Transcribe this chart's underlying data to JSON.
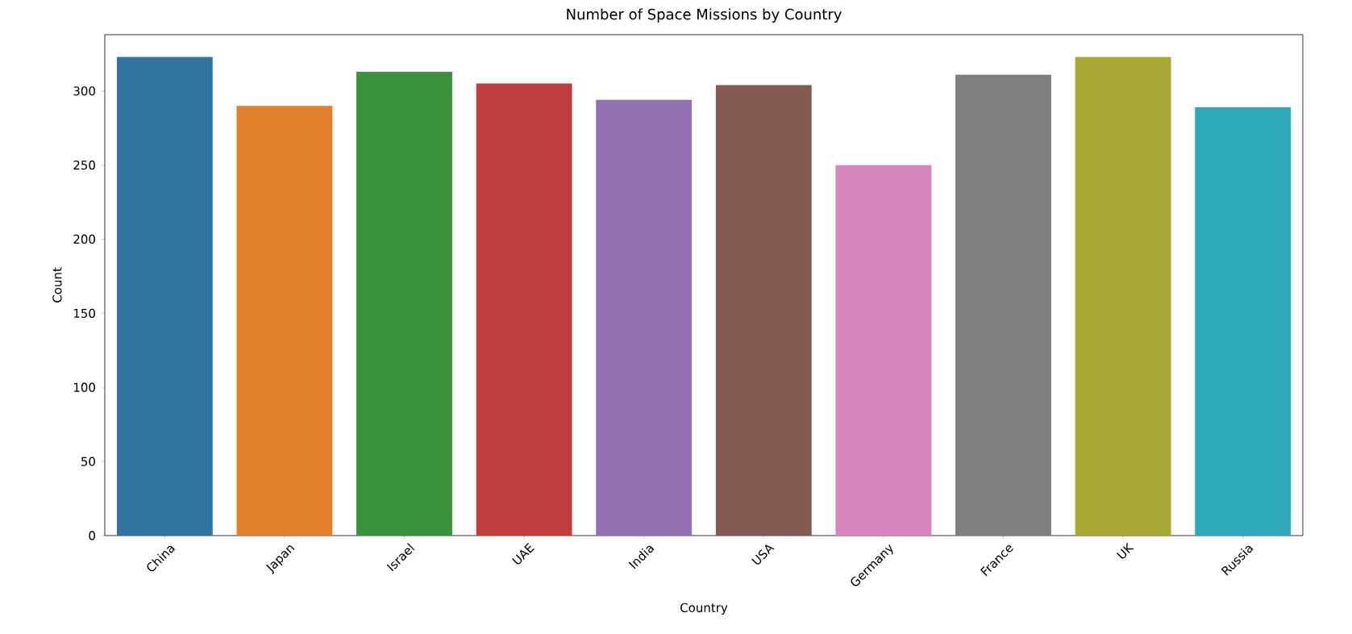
{
  "chart_data": {
    "type": "bar",
    "title": "Number of Space Missions by Country",
    "xlabel": "Country",
    "ylabel": "Count",
    "categories": [
      "China",
      "Japan",
      "Israel",
      "UAE",
      "India",
      "USA",
      "Germany",
      "France",
      "UK",
      "Russia"
    ],
    "values": [
      323,
      290,
      313,
      305,
      294,
      304,
      250,
      311,
      323,
      289
    ],
    "colors": [
      "#3274a1",
      "#e1812c",
      "#3a923a",
      "#c03d3e",
      "#9372b2",
      "#845b53",
      "#d684bd",
      "#7f7f7f",
      "#a9aa35",
      "#2ea9b8"
    ],
    "ylim": [
      0,
      338
    ],
    "yticks": [
      0,
      50,
      100,
      150,
      200,
      250,
      300
    ]
  }
}
